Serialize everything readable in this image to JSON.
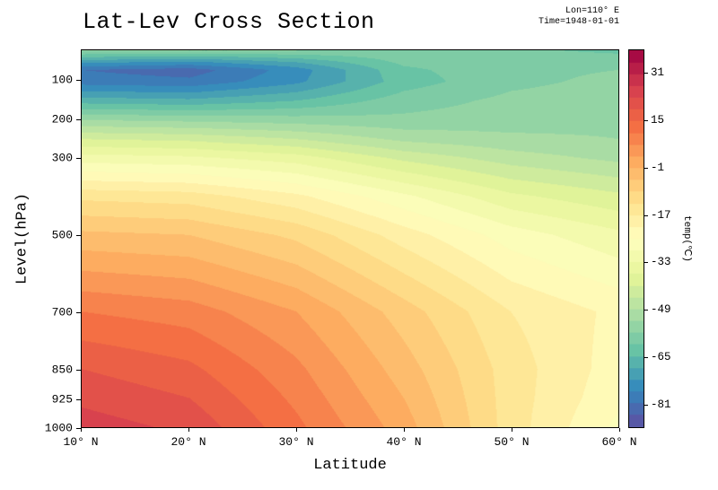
{
  "chart_data": {
    "type": "filled_contour",
    "title": "Lat-Lev Cross Section",
    "xlabel": "Latitude",
    "ylabel": "Level(hPa)",
    "annotations": {
      "lon": "Lon=110° E",
      "time": "Time=1948-01-01"
    },
    "x_name": "latitude_deg_N",
    "y_name": "pressure_hPa",
    "x": [
      10,
      20,
      30,
      40,
      50,
      60
    ],
    "y": [
      20,
      50,
      70,
      100,
      150,
      200,
      250,
      300,
      400,
      500,
      700,
      850,
      925,
      1000
    ],
    "x_range": [
      10,
      60
    ],
    "y_range": [
      20,
      1000
    ],
    "values": [
      [
        -56,
        -57,
        -57,
        -58,
        -60,
        -62
      ],
      [
        -72,
        -74,
        -69,
        -60,
        -58,
        -58
      ],
      [
        -81,
        -83,
        -75,
        -62,
        -58,
        -57
      ],
      [
        -79,
        -80,
        -74,
        -63,
        -58,
        -56
      ],
      [
        -67,
        -68,
        -65,
        -59,
        -56,
        -55
      ],
      [
        -53,
        -54,
        -55,
        -56,
        -55,
        -54
      ],
      [
        -41,
        -42,
        -45,
        -50,
        -52,
        -53
      ],
      [
        -31,
        -32,
        -35,
        -42,
        -47,
        -50
      ],
      [
        -14,
        -15,
        -20,
        -28,
        -36,
        -40
      ],
      [
        -4,
        -5,
        -10,
        -19,
        -27,
        -32
      ],
      [
        11,
        9,
        3,
        -7,
        -17,
        -22
      ],
      [
        19,
        16,
        8,
        -3,
        -15,
        -23
      ],
      [
        22,
        19,
        10,
        -1,
        -15,
        -24
      ],
      [
        25,
        22,
        12,
        1,
        -15,
        -26
      ]
    ],
    "x_ticks": [
      {
        "value": 10,
        "label": "10° N"
      },
      {
        "value": 20,
        "label": "20° N"
      },
      {
        "value": 30,
        "label": "30° N"
      },
      {
        "value": 40,
        "label": "40° N"
      },
      {
        "value": 50,
        "label": "50° N"
      },
      {
        "value": 60,
        "label": "60° N"
      }
    ],
    "y_ticks": [
      {
        "value": 100,
        "label": "100"
      },
      {
        "value": 200,
        "label": "200"
      },
      {
        "value": 300,
        "label": "300"
      },
      {
        "value": 500,
        "label": "500"
      },
      {
        "value": 700,
        "label": "700"
      },
      {
        "value": 850,
        "label": "850"
      },
      {
        "value": 925,
        "label": "925"
      },
      {
        "value": 1000,
        "label": "1000"
      }
    ],
    "colorbar": {
      "label": "temp(℃)",
      "colormap": "Spectral_r",
      "vmin": -89,
      "vmax": 39,
      "step": 4,
      "ticks": [
        {
          "value": 31,
          "label": "31"
        },
        {
          "value": 15,
          "label": "15"
        },
        {
          "value": -1,
          "label": "-1"
        },
        {
          "value": -17,
          "label": "-17"
        },
        {
          "value": -33,
          "label": "-33"
        },
        {
          "value": -49,
          "label": "-49"
        },
        {
          "value": -65,
          "label": "-65"
        },
        {
          "value": -81,
          "label": "-81"
        }
      ],
      "colors": [
        "#5e4fa2",
        "#3288bd",
        "#66c2a5",
        "#abdda4",
        "#e6f598",
        "#ffffbf",
        "#fee08b",
        "#fdae61",
        "#f46d43",
        "#d53e4f",
        "#9e0142"
      ]
    }
  }
}
